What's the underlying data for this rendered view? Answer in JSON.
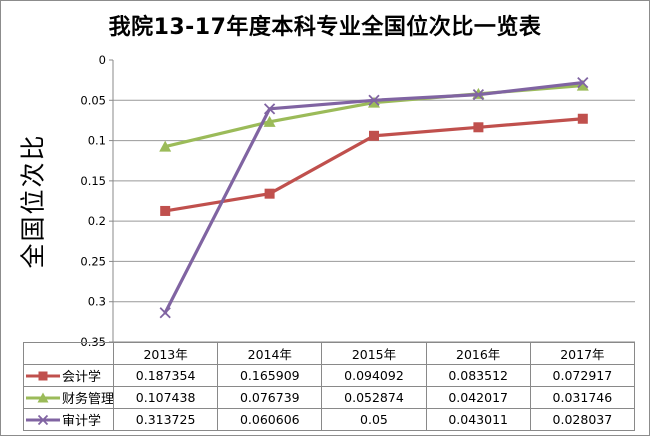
{
  "chart_data": {
    "type": "line",
    "title": "我院13-17年度本科专业全国位次比一览表",
    "ylabel": "全国位次比",
    "xlabel": "",
    "categories": [
      "2013年",
      "2014年",
      "2015年",
      "2016年",
      "2017年"
    ],
    "series": [
      {
        "name": "会计学",
        "marker": "square",
        "color": "#C0504D",
        "values": [
          0.187354,
          0.165909,
          0.094092,
          0.083512,
          0.072917
        ]
      },
      {
        "name": "财务管理",
        "marker": "triangle",
        "color": "#9BBB59",
        "values": [
          0.107438,
          0.076739,
          0.052874,
          0.042017,
          0.031746
        ]
      },
      {
        "name": "审计学",
        "marker": "x",
        "color": "#8064A2",
        "values": [
          0.313725,
          0.060606,
          0.05,
          0.043011,
          0.028037
        ]
      }
    ],
    "ylim": [
      0,
      0.35
    ],
    "y_ticks": [
      "0",
      "0.05",
      "0.1",
      "0.15",
      "0.2",
      "0.25",
      "0.3",
      "0.35"
    ],
    "y_axis_reversed": true,
    "grid": true,
    "legend_position": "table-left",
    "colors": {
      "gridline": "#999999",
      "axis": "#898989",
      "table_border": "#898989",
      "outer_border": "#8C8C8C",
      "background": "#FFFFFF"
    }
  }
}
